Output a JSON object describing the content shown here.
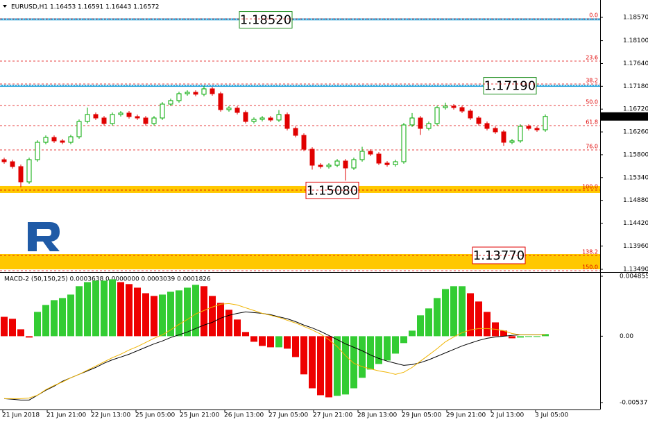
{
  "chart_data": [
    {
      "type": "candlestick",
      "title": "EURUSD,H1  1.16453 1.16591 1.16443 1.16572",
      "up_color": "#00a800",
      "down_color": "#e00000",
      "open": [
        1.157,
        1.15659,
        1.15561,
        1.15253,
        1.15701,
        1.16051,
        1.16149,
        1.16079,
        1.16051,
        1.16163,
        1.16471,
        1.16611,
        1.16541,
        1.16429,
        1.16611,
        1.1664,
        1.16569,
        1.16541,
        1.16429,
        1.16541,
        1.16821,
        1.16891,
        1.17031,
        1.17059,
        1.1702,
        1.17129,
        1.17031,
        1.16709,
        1.1674,
        1.16653,
        1.16471,
        1.16513,
        1.16541,
        1.165,
        1.16611,
        1.16331,
        1.16191,
        1.15911,
        1.15589,
        1.15561,
        1.15589,
        1.15673,
        1.15533,
        1.15701,
        1.15869,
        1.15813,
        1.15631,
        1.156,
        1.15659,
        1.16401,
        1.16541,
        1.16331,
        1.16429,
        1.16751,
        1.1678,
        1.16751,
        1.16681,
        1.16541,
        1.16429,
        1.16331,
        1.16261,
        1.16051,
        1.1608,
        1.16373,
        1.16331,
        1.16303
      ],
      "high": [
        1.1574,
        1.15699,
        1.15601,
        1.15741,
        1.16091,
        1.16189,
        1.16189,
        1.16119,
        1.16203,
        1.16511,
        1.16751,
        1.16651,
        1.16581,
        1.16651,
        1.1668,
        1.1668,
        1.16609,
        1.16581,
        1.16581,
        1.16861,
        1.16931,
        1.17071,
        1.17099,
        1.17099,
        1.1719,
        1.17169,
        1.17071,
        1.1678,
        1.1678,
        1.16693,
        1.16553,
        1.16581,
        1.16581,
        1.167,
        1.16651,
        1.16371,
        1.16231,
        1.15951,
        1.15629,
        1.15629,
        1.15713,
        1.15713,
        1.15741,
        1.1596,
        1.15909,
        1.15853,
        1.15671,
        1.15699,
        1.16441,
        1.1664,
        1.16581,
        1.16469,
        1.16791,
        1.1685,
        1.1682,
        1.16791,
        1.16721,
        1.16581,
        1.16469,
        1.16371,
        1.16301,
        1.1612,
        1.16413,
        1.16413,
        1.16371,
        1.16612
      ],
      "low": [
        1.15619,
        1.15521,
        1.15141,
        1.15213,
        1.15661,
        1.16011,
        1.16039,
        1.16011,
        1.16011,
        1.16123,
        1.16431,
        1.16501,
        1.16389,
        1.16389,
        1.16571,
        1.16529,
        1.16501,
        1.16389,
        1.16389,
        1.16501,
        1.16781,
        1.16851,
        1.16991,
        1.1698,
        1.1698,
        1.16991,
        1.16669,
        1.16669,
        1.16613,
        1.16431,
        1.16431,
        1.16473,
        1.1646,
        1.1646,
        1.16291,
        1.16151,
        1.15871,
        1.155,
        1.15521,
        1.15521,
        1.15549,
        1.1528,
        1.15493,
        1.15661,
        1.15773,
        1.15591,
        1.1556,
        1.1556,
        1.15619,
        1.16361,
        1.162,
        1.16291,
        1.16389,
        1.16711,
        1.16711,
        1.16641,
        1.16501,
        1.16389,
        1.16291,
        1.16221,
        1.1598,
        1.16011,
        1.1604,
        1.16291,
        1.16263,
        1.16263
      ],
      "close": [
        1.15659,
        1.15561,
        1.15253,
        1.15701,
        1.16051,
        1.16149,
        1.16079,
        1.16051,
        1.16163,
        1.16471,
        1.16611,
        1.16541,
        1.16429,
        1.16611,
        1.1664,
        1.16569,
        1.16541,
        1.16429,
        1.16541,
        1.16821,
        1.16891,
        1.17031,
        1.17059,
        1.1702,
        1.17129,
        1.17031,
        1.16709,
        1.1674,
        1.16653,
        1.16471,
        1.16513,
        1.16541,
        1.165,
        1.16611,
        1.16331,
        1.16191,
        1.15911,
        1.15589,
        1.15561,
        1.15589,
        1.15673,
        1.15533,
        1.15701,
        1.15869,
        1.15813,
        1.15631,
        1.156,
        1.15659,
        1.16401,
        1.16541,
        1.16331,
        1.16429,
        1.16751,
        1.1678,
        1.16751,
        1.16681,
        1.16541,
        1.16429,
        1.16331,
        1.16261,
        1.16051,
        1.1608,
        1.16373,
        1.16331,
        1.16303,
        1.16572
      ],
      "last_price": 1.16572,
      "ylim": [
        1.13434,
        1.1892
      ],
      "yticks": [
        {
          "value": 1.1857,
          "label": "1.18570"
        },
        {
          "value": 1.181,
          "label": "1.18100"
        },
        {
          "value": 1.1764,
          "label": "1.17640"
        },
        {
          "value": 1.1718,
          "label": "1.17180"
        },
        {
          "value": 1.1672,
          "label": "1.16720"
        },
        {
          "value": 1.1626,
          "label": "1.16260"
        },
        {
          "value": 1.158,
          "label": "1.15800"
        },
        {
          "value": 1.1534,
          "label": "1.15340"
        },
        {
          "value": 1.1488,
          "label": "1.14880"
        },
        {
          "value": 1.1442,
          "label": "1.14420"
        },
        {
          "value": 1.1396,
          "label": "1.13960"
        },
        {
          "value": 1.1349,
          "label": "1.13490"
        }
      ],
      "fib_levels": [
        {
          "label": "0.0",
          "value": 1.1854
        },
        {
          "label": "23.6",
          "value": 1.17688
        },
        {
          "label": "38.2",
          "value": 1.17227
        },
        {
          "label": "50.0",
          "value": 1.16793
        },
        {
          "label": "61.8",
          "value": 1.16387
        },
        {
          "label": "76.0",
          "value": 1.15897
        },
        {
          "label": "100.0",
          "value": 1.15086
        },
        {
          "label": "138.2",
          "value": 1.1377
        },
        {
          "label": "150.0",
          "value": 1.13462
        }
      ],
      "zones": [
        {
          "label": "1.18520",
          "value": 1.1852,
          "band": [
            1.1851,
            1.1855
          ],
          "color": "#2aa6dc",
          "text_color": "#1a8c1a"
        },
        {
          "label": "1.17190",
          "value": 1.1719,
          "band": [
            1.1717,
            1.1721
          ],
          "color": "#2aa6dc",
          "text_color": "#1a8c1a"
        },
        {
          "label": "1.15080",
          "value": 1.1508,
          "band": [
            1.1503,
            1.1517
          ],
          "color": "#ffc800",
          "text_color": "#e00000"
        },
        {
          "label": "1.13770",
          "value": 1.1377,
          "band": [
            1.1349,
            1.13798
          ],
          "color": "#ffc800",
          "text_color": "#e00000"
        }
      ],
      "x_labels": [
        "21 Jun 2018",
        "21 Jun 21:00",
        "22 Jun 13:00",
        "25 Jun 05:00",
        "25 Jun 21:00",
        "26 Jun 13:00",
        "27 Jun 05:00",
        "27 Jun 21:00",
        "28 Jun 13:00",
        "29 Jun 05:00",
        "29 Jun 21:00",
        "2 Jul 13:00",
        "3 Jul 05:00"
      ]
    },
    {
      "type": "macd",
      "title": "MACD-2 (50,150,25) 0.0003638 0.0000000 0.0003039 0.0001826",
      "up_color": "#33cc33",
      "down_color": "#ee0000",
      "histogram": [
        0.00157,
        0.00141,
        0.00056,
        -0.00011,
        0.00197,
        0.00253,
        0.00292,
        0.00309,
        0.00337,
        0.00405,
        0.00438,
        0.0045,
        0.0045,
        0.00461,
        0.00438,
        0.00422,
        0.00393,
        0.00348,
        0.00326,
        0.00337,
        0.0036,
        0.00371,
        0.00393,
        0.00416,
        0.00405,
        0.00326,
        0.0027,
        0.00214,
        0.00135,
        0.00034,
        -0.00045,
        -0.00079,
        -0.0009,
        -0.0009,
        -0.00101,
        -0.00169,
        -0.00309,
        -0.00422,
        -0.00478,
        -0.00495,
        -0.00483,
        -0.00472,
        -0.00422,
        -0.00337,
        -0.0027,
        -0.00225,
        -0.00197,
        -0.00141,
        -0.00056,
        0.00045,
        0.00169,
        0.00225,
        0.00309,
        0.00382,
        0.00405,
        0.00405,
        0.00348,
        0.00281,
        0.00197,
        0.00112,
        0.00045,
        -0.00017,
        -0.00011,
        -6e-05,
        -6e-05,
        0.00017
      ],
      "series": [
        {
          "color": "#000000",
          "values": [
            -0.00506,
            -0.00511,
            -0.00517,
            -0.00517,
            -0.00478,
            -0.00438,
            -0.00405,
            -0.00365,
            -0.00337,
            -0.00309,
            -0.00281,
            -0.00253,
            -0.00219,
            -0.00191,
            -0.00169,
            -0.00146,
            -0.00118,
            -0.0009,
            -0.00062,
            -0.00039,
            -0.00011,
            0.00011,
            0.00034,
            0.00062,
            0.0009,
            0.00112,
            0.00146,
            0.00169,
            0.00185,
            0.00197,
            0.00191,
            0.00185,
            0.00174,
            0.00157,
            0.00141,
            0.00118,
            0.0009,
            0.00067,
            0.00039,
            6e-05,
            -0.00028,
            -0.00062,
            -0.0009,
            -0.00118,
            -0.00152,
            -0.0018,
            -0.00202,
            -0.00219,
            -0.00236,
            -0.0023,
            -0.00214,
            -0.00191,
            -0.00163,
            -0.00135,
            -0.00107,
            -0.00079,
            -0.00056,
            -0.00034,
            -0.00017,
            -6e-05,
            0.0,
            6e-05,
            0.00011,
            0.00011,
            0.00011,
            0.00011
          ]
        },
        {
          "color": "#f0b400",
          "values": [
            -0.00506,
            -0.00506,
            -0.00506,
            -0.005,
            -0.00478,
            -0.00433,
            -0.00399,
            -0.00371,
            -0.00337,
            -0.00309,
            -0.00275,
            -0.00242,
            -0.00208,
            -0.00174,
            -0.00146,
            -0.00112,
            -0.00084,
            -0.00051,
            -0.00017,
            0.00011,
            0.00051,
            0.00096,
            0.00135,
            0.0018,
            0.00208,
            0.00236,
            0.00259,
            0.00264,
            0.00253,
            0.0023,
            0.00208,
            0.00185,
            0.00169,
            0.00152,
            0.00129,
            0.00107,
            0.00079,
            0.00051,
            0.00017,
            -0.00028,
            -0.00084,
            -0.00157,
            -0.00219,
            -0.00247,
            -0.00264,
            -0.00281,
            -0.00292,
            -0.00309,
            -0.00292,
            -0.00253,
            -0.00202,
            -0.00152,
            -0.00101,
            -0.00045,
            -6e-05,
            0.00028,
            0.00051,
            0.00062,
            0.00062,
            0.00056,
            0.00045,
            0.00022,
            0.00011,
            0.00011,
            0.00011,
            0.00011
          ]
        }
      ],
      "ylim": [
        -0.005937,
        0.00508
      ],
      "yticks": [
        0.004855,
        {
          "value": 0,
          "label": "0.00"
        },
        -0.005375
      ]
    }
  ]
}
